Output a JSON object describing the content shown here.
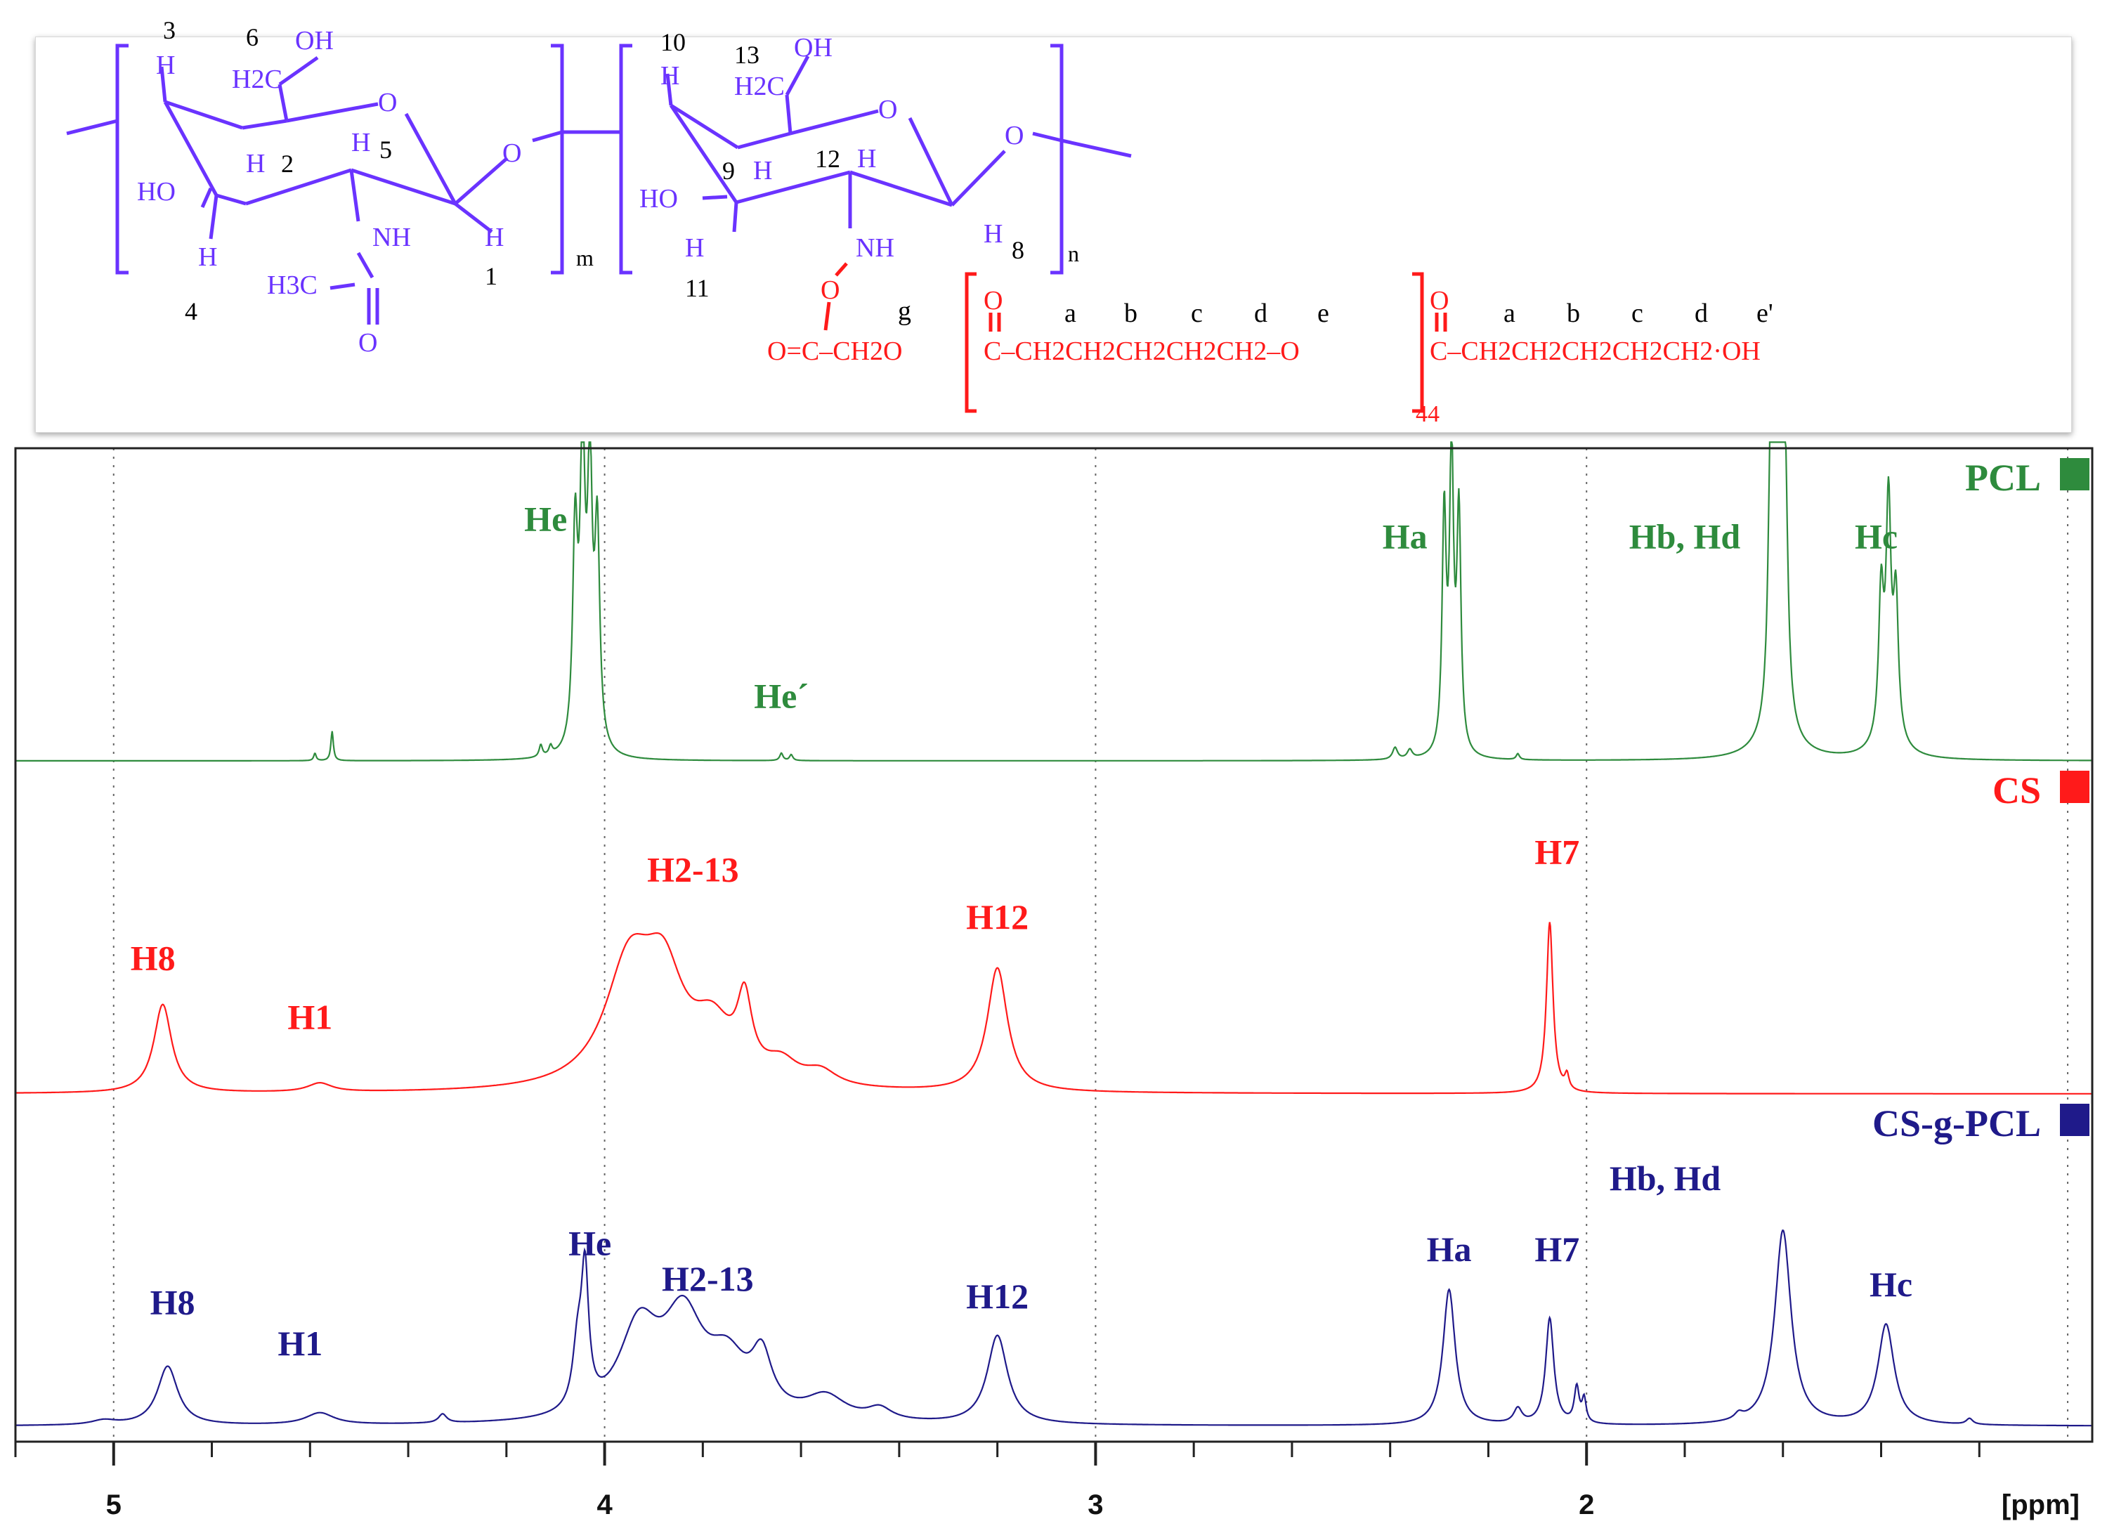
{
  "colors": {
    "pcl": "#2e8b3d",
    "cs": "#ff1a1a",
    "csgpcl": "#1f1a8a",
    "chain": "#6a33ff",
    "graft": "#ff1a1a",
    "axis": "#222222",
    "grid": "#666666"
  },
  "structure": {
    "unit1": {
      "pos": [
        "3",
        "6",
        "2",
        "5",
        "4",
        "1"
      ],
      "oh": "OH",
      "h2c": "H2C",
      "ho": "HO",
      "nh": "NH",
      "h3c": "H3C",
      "h": "H",
      "o": "O",
      "sub": "m"
    },
    "unit2": {
      "pos": [
        "10",
        "13",
        "9",
        "12",
        "11",
        "8"
      ],
      "oh": "OH",
      "h2c": "H2C",
      "ho": "HO",
      "nh": "NH",
      "h": "H",
      "o": "O",
      "sub": "n"
    },
    "bridge_o": "O",
    "graft": {
      "letters_rep": [
        "g",
        "a",
        "b",
        "c",
        "d",
        "e"
      ],
      "letters_end": [
        "a",
        "b",
        "c",
        "d",
        "e'"
      ],
      "seg1": "O=C–CH2O",
      "seg2": "C–CH2CH2CH2CH2CH2–O",
      "seg3": "C–CH2CH2CH2CH2CH2·OH",
      "o_top": "O",
      "repeat": "44"
    }
  },
  "chart_data": {
    "type": "line",
    "xlabel": "[ppm]",
    "xlim": [
      5.2,
      0.97
    ],
    "xticks": [
      5,
      4,
      3,
      2
    ],
    "xtick_labels": [
      "5",
      "4",
      "3",
      "2"
    ],
    "grid": "vertical dotted",
    "legend_placement": "right, per panel",
    "series": [
      {
        "name": "PCL",
        "color": "#2e8b3d",
        "peaks": [
          {
            "x": 4.06,
            "h": 0.72,
            "w": 0.006
          },
          {
            "x": 4.045,
            "h": 1.0,
            "w": 0.006
          },
          {
            "x": 4.03,
            "h": 0.9,
            "w": 0.006
          },
          {
            "x": 4.015,
            "h": 0.72,
            "w": 0.006
          },
          {
            "x": 4.13,
            "h": 0.04,
            "w": 0.004
          },
          {
            "x": 4.11,
            "h": 0.03,
            "w": 0.004
          },
          {
            "x": 4.555,
            "h": 0.1,
            "w": 0.003
          },
          {
            "x": 4.59,
            "h": 0.025,
            "w": 0.003
          },
          {
            "x": 3.64,
            "h": 0.025,
            "w": 0.004
          },
          {
            "x": 3.62,
            "h": 0.02,
            "w": 0.004
          },
          {
            "x": 2.29,
            "h": 0.8,
            "w": 0.005
          },
          {
            "x": 2.275,
            "h": 1.0,
            "w": 0.005
          },
          {
            "x": 2.26,
            "h": 0.8,
            "w": 0.005
          },
          {
            "x": 2.39,
            "h": 0.04,
            "w": 0.006
          },
          {
            "x": 2.36,
            "h": 0.03,
            "w": 0.006
          },
          {
            "x": 2.14,
            "h": 0.02,
            "w": 0.004
          },
          {
            "x": 1.625,
            "h": 0.8,
            "w": 0.006
          },
          {
            "x": 1.615,
            "h": 1.0,
            "w": 0.006
          },
          {
            "x": 1.605,
            "h": 0.92,
            "w": 0.006
          },
          {
            "x": 1.595,
            "h": 0.7,
            "w": 0.006
          },
          {
            "x": 1.61,
            "h": 0.08,
            "w": 0.04
          },
          {
            "x": 1.4,
            "h": 0.48,
            "w": 0.006
          },
          {
            "x": 1.385,
            "h": 0.76,
            "w": 0.006
          },
          {
            "x": 1.37,
            "h": 0.46,
            "w": 0.006
          },
          {
            "x": 1.385,
            "h": 0.07,
            "w": 0.03
          }
        ],
        "labels": [
          {
            "text": "He",
            "x": 4.12,
            "y": 0.78
          },
          {
            "text": "He´",
            "x": 3.64,
            "y": 0.18
          },
          {
            "text": "Ha",
            "x": 2.37,
            "y": 0.72
          },
          {
            "text": "Hb, Hd",
            "x": 1.8,
            "y": 0.72
          },
          {
            "text": "Hc",
            "x": 1.41,
            "y": 0.72
          }
        ]
      },
      {
        "name": "CS",
        "color": "#ff1a1a",
        "peaks": [
          {
            "x": 4.9,
            "h": 0.3,
            "w": 0.022
          },
          {
            "x": 4.58,
            "h": 0.03,
            "w": 0.03
          },
          {
            "x": 3.95,
            "h": 0.4,
            "w": 0.06
          },
          {
            "x": 3.88,
            "h": 0.32,
            "w": 0.05
          },
          {
            "x": 3.78,
            "h": 0.18,
            "w": 0.05
          },
          {
            "x": 3.715,
            "h": 0.24,
            "w": 0.018
          },
          {
            "x": 3.64,
            "h": 0.07,
            "w": 0.04
          },
          {
            "x": 3.56,
            "h": 0.05,
            "w": 0.04
          },
          {
            "x": 3.2,
            "h": 0.42,
            "w": 0.025
          },
          {
            "x": 2.075,
            "h": 0.58,
            "w": 0.008
          },
          {
            "x": 2.04,
            "h": 0.05,
            "w": 0.005
          }
        ],
        "labels": [
          {
            "text": "H8",
            "x": 4.92,
            "y": 0.42
          },
          {
            "text": "H1",
            "x": 4.6,
            "y": 0.22
          },
          {
            "text": "H2-13",
            "x": 3.82,
            "y": 0.72
          },
          {
            "text": "H12",
            "x": 3.2,
            "y": 0.56
          },
          {
            "text": "H7",
            "x": 2.06,
            "y": 0.78
          }
        ]
      },
      {
        "name": "CS-g-PCL",
        "color": "#1f1a8a",
        "peaks": [
          {
            "x": 4.89,
            "h": 0.2,
            "w": 0.025
          },
          {
            "x": 4.58,
            "h": 0.04,
            "w": 0.035
          },
          {
            "x": 5.02,
            "h": 0.015,
            "w": 0.03
          },
          {
            "x": 4.33,
            "h": 0.03,
            "w": 0.01
          },
          {
            "x": 4.04,
            "h": 0.44,
            "w": 0.009
          },
          {
            "x": 4.055,
            "h": 0.2,
            "w": 0.012
          },
          {
            "x": 3.93,
            "h": 0.3,
            "w": 0.05
          },
          {
            "x": 3.84,
            "h": 0.32,
            "w": 0.05
          },
          {
            "x": 3.75,
            "h": 0.18,
            "w": 0.05
          },
          {
            "x": 3.68,
            "h": 0.18,
            "w": 0.025
          },
          {
            "x": 3.55,
            "h": 0.08,
            "w": 0.05
          },
          {
            "x": 3.44,
            "h": 0.04,
            "w": 0.03
          },
          {
            "x": 3.2,
            "h": 0.3,
            "w": 0.025
          },
          {
            "x": 2.28,
            "h": 0.46,
            "w": 0.015
          },
          {
            "x": 2.14,
            "h": 0.05,
            "w": 0.01
          },
          {
            "x": 2.075,
            "h": 0.36,
            "w": 0.01
          },
          {
            "x": 2.02,
            "h": 0.12,
            "w": 0.006
          },
          {
            "x": 2.005,
            "h": 0.08,
            "w": 0.005
          },
          {
            "x": 1.69,
            "h": 0.02,
            "w": 0.01
          },
          {
            "x": 1.6,
            "h": 0.66,
            "w": 0.02
          },
          {
            "x": 1.39,
            "h": 0.34,
            "w": 0.02
          },
          {
            "x": 1.22,
            "h": 0.02,
            "w": 0.008
          }
        ],
        "labels": [
          {
            "text": "H8",
            "x": 4.88,
            "y": 0.38
          },
          {
            "text": "H1",
            "x": 4.62,
            "y": 0.24
          },
          {
            "text": "He",
            "x": 4.03,
            "y": 0.58
          },
          {
            "text": "H2-13",
            "x": 3.79,
            "y": 0.46
          },
          {
            "text": "H12",
            "x": 3.2,
            "y": 0.4
          },
          {
            "text": "Ha",
            "x": 2.28,
            "y": 0.56
          },
          {
            "text": "H7",
            "x": 2.06,
            "y": 0.56
          },
          {
            "text": "Hb, Hd",
            "x": 1.84,
            "y": 0.8
          },
          {
            "text": "Hc",
            "x": 1.38,
            "y": 0.44
          }
        ]
      }
    ]
  }
}
